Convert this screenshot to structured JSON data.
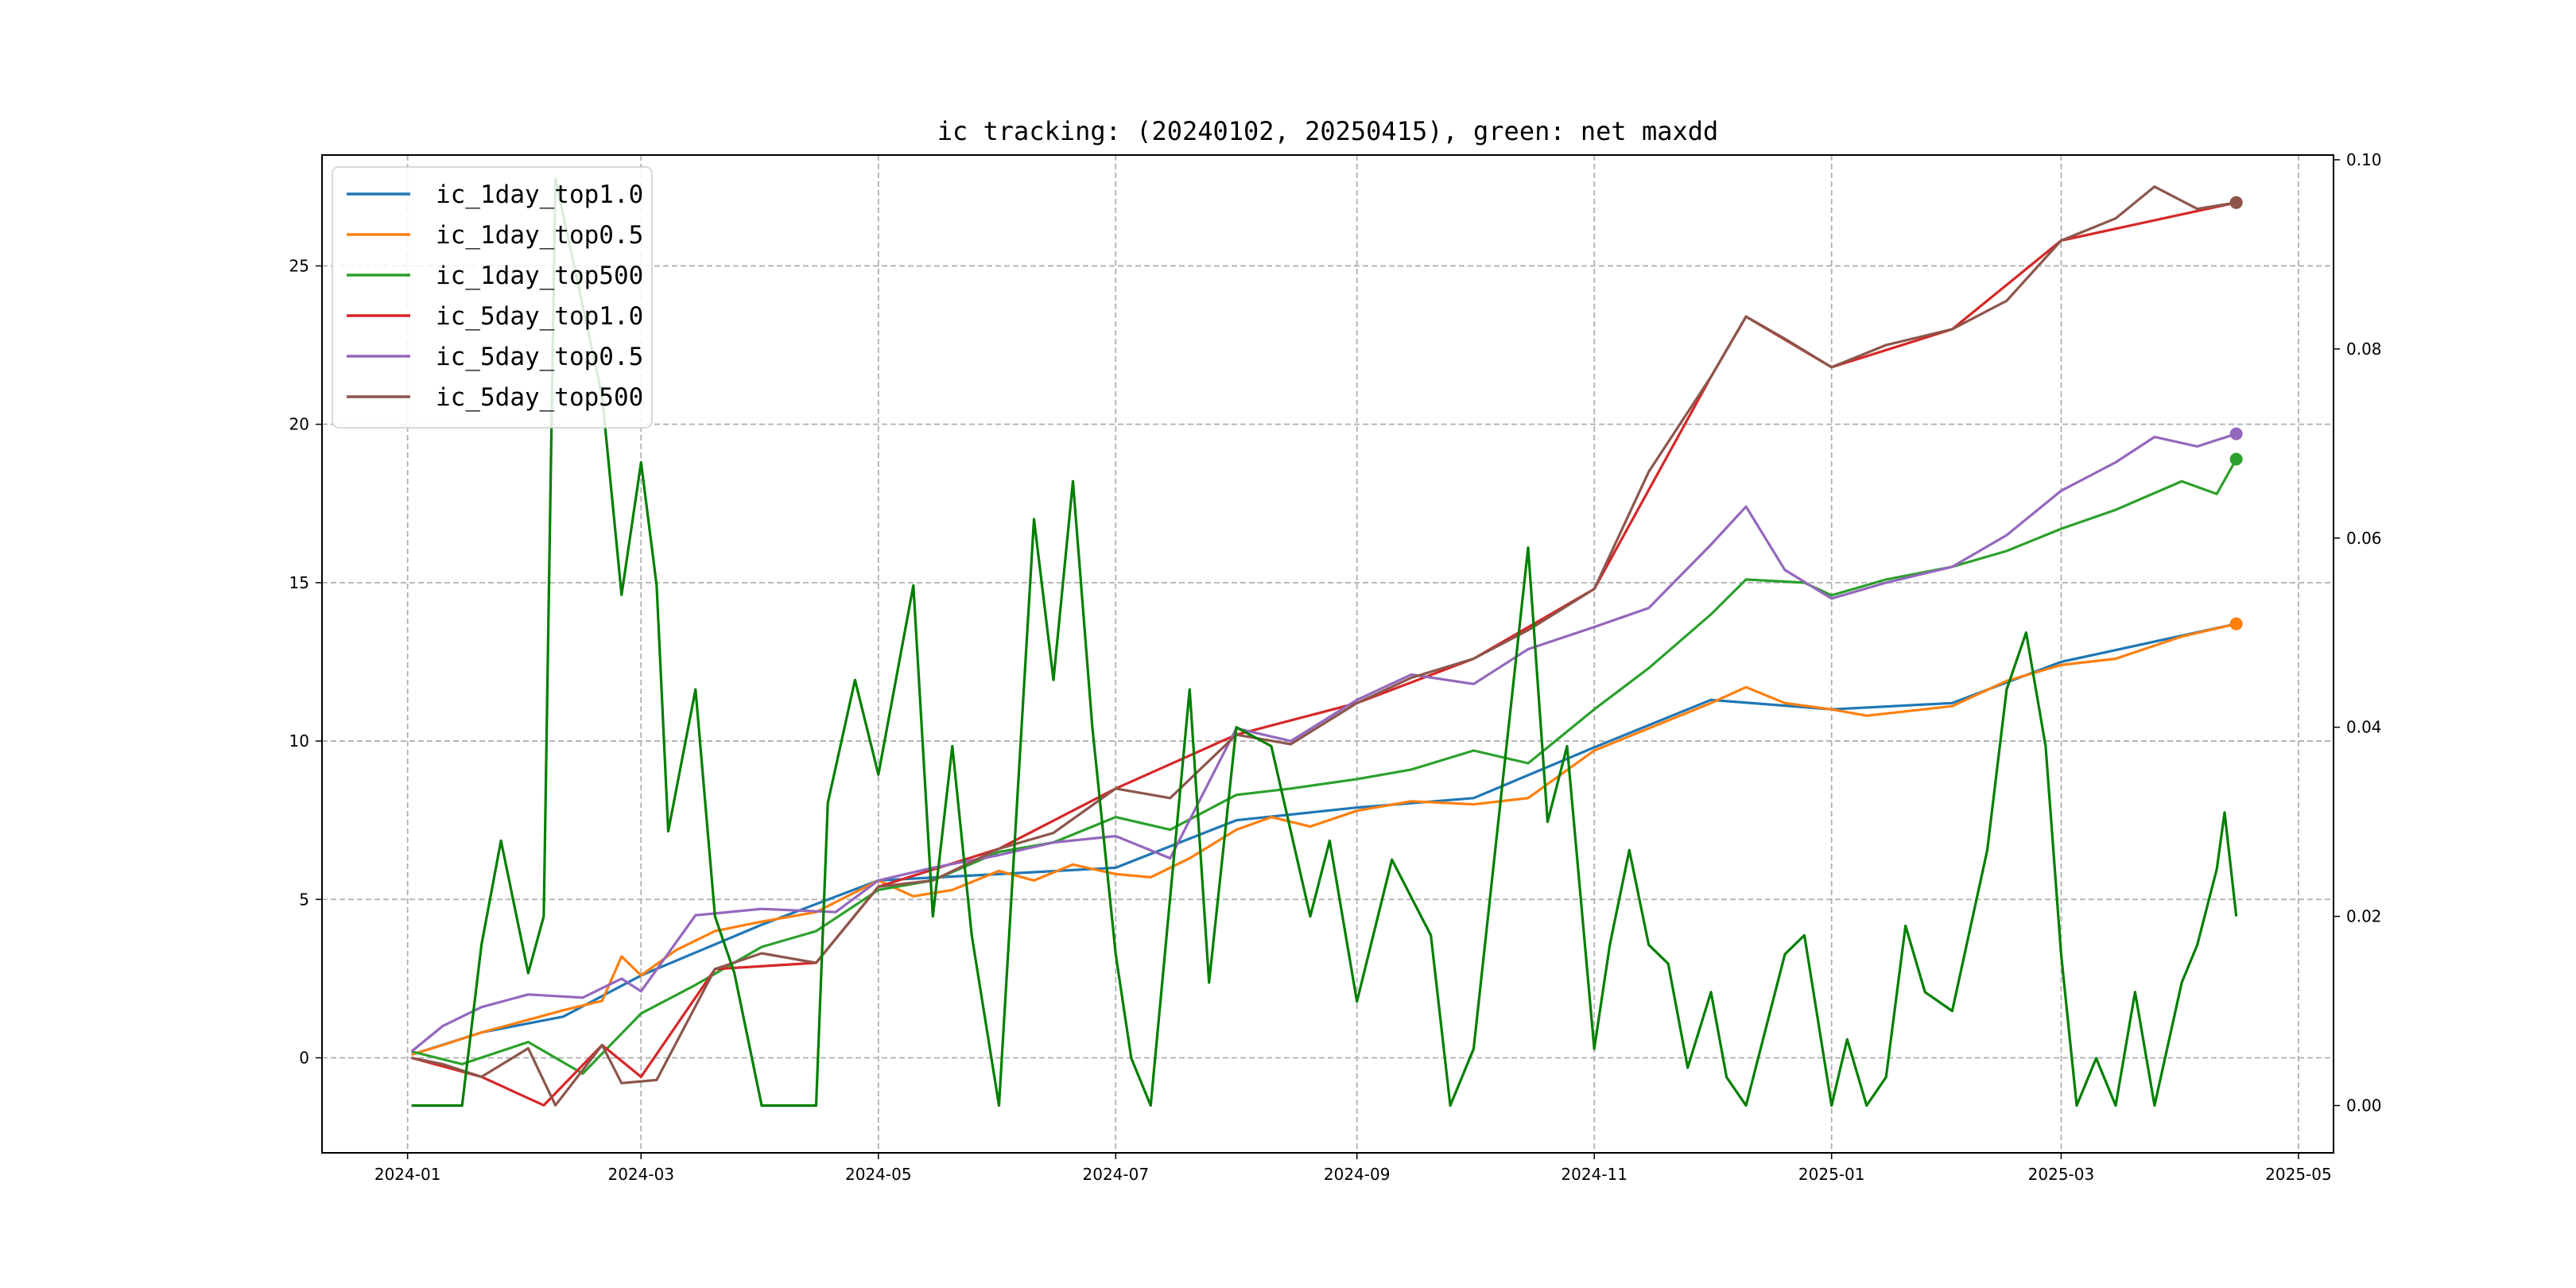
{
  "chart_data": {
    "type": "line",
    "title": "ic tracking: (20240102, 20250415), green: net maxdd",
    "xlabel": "",
    "ylabel": "",
    "x_tick_labels": [
      "2024-01",
      "2024-03",
      "2024-05",
      "2024-07",
      "2024-09",
      "2024-11",
      "2025-01",
      "2025-03",
      "2025-05"
    ],
    "x_range": [
      "2023-12-10",
      "2025-05-10"
    ],
    "y_left": {
      "ylim": [
        -3,
        28.5
      ],
      "ticks": [
        0,
        5,
        10,
        15,
        20,
        25
      ]
    },
    "y_right": {
      "ylim": [
        -0.005,
        0.1005
      ],
      "ticks": [
        "0.00",
        "0.02",
        "0.04",
        "0.06",
        "0.08",
        "0.10"
      ]
    },
    "grid": true,
    "legend_position": "top-left",
    "series": [
      {
        "name": "ic_1day_top1.0",
        "color": "#1f77b4",
        "axis": "left",
        "points": [
          [
            "2024-01-02",
            0.1
          ],
          [
            "2024-01-20",
            0.8
          ],
          [
            "2024-02-10",
            1.3
          ],
          [
            "2024-03-01",
            2.6
          ],
          [
            "2024-04-01",
            4.2
          ],
          [
            "2024-05-01",
            5.6
          ],
          [
            "2024-06-01",
            5.8
          ],
          [
            "2024-07-01",
            6.0
          ],
          [
            "2024-08-01",
            7.5
          ],
          [
            "2024-09-01",
            7.9
          ],
          [
            "2024-10-01",
            8.2
          ],
          [
            "2024-11-01",
            9.8
          ],
          [
            "2024-12-01",
            11.3
          ],
          [
            "2025-01-01",
            11.0
          ],
          [
            "2025-02-01",
            11.2
          ],
          [
            "2025-03-01",
            12.5
          ],
          [
            "2025-04-15",
            13.7
          ]
        ]
      },
      {
        "name": "ic_1day_top0.5",
        "color": "#ff7f0e",
        "axis": "left",
        "points": [
          [
            "2024-01-02",
            0.1
          ],
          [
            "2024-01-10",
            0.4
          ],
          [
            "2024-01-20",
            0.8
          ],
          [
            "2024-02-01",
            1.2
          ],
          [
            "2024-02-10",
            1.5
          ],
          [
            "2024-02-20",
            1.8
          ],
          [
            "2024-02-25",
            3.2
          ],
          [
            "2024-03-01",
            2.6
          ],
          [
            "2024-03-10",
            3.4
          ],
          [
            "2024-03-20",
            4.0
          ],
          [
            "2024-04-01",
            4.3
          ],
          [
            "2024-04-15",
            4.6
          ],
          [
            "2024-05-01",
            5.6
          ],
          [
            "2024-05-10",
            5.1
          ],
          [
            "2024-05-20",
            5.3
          ],
          [
            "2024-06-01",
            5.9
          ],
          [
            "2024-06-10",
            5.6
          ],
          [
            "2024-06-20",
            6.1
          ],
          [
            "2024-07-01",
            5.8
          ],
          [
            "2024-07-10",
            5.7
          ],
          [
            "2024-07-20",
            6.3
          ],
          [
            "2024-08-01",
            7.2
          ],
          [
            "2024-08-10",
            7.6
          ],
          [
            "2024-08-20",
            7.3
          ],
          [
            "2024-09-01",
            7.8
          ],
          [
            "2024-09-15",
            8.1
          ],
          [
            "2024-10-01",
            8.0
          ],
          [
            "2024-10-15",
            8.2
          ],
          [
            "2024-11-01",
            9.7
          ],
          [
            "2024-11-15",
            10.4
          ],
          [
            "2024-12-01",
            11.2
          ],
          [
            "2024-12-10",
            11.7
          ],
          [
            "2024-12-20",
            11.2
          ],
          [
            "2025-01-01",
            11.0
          ],
          [
            "2025-01-10",
            10.8
          ],
          [
            "2025-02-01",
            11.1
          ],
          [
            "2025-02-15",
            11.9
          ],
          [
            "2025-03-01",
            12.4
          ],
          [
            "2025-03-15",
            12.6
          ],
          [
            "2025-04-01",
            13.3
          ],
          [
            "2025-04-15",
            13.7
          ]
        ]
      },
      {
        "name": "ic_1day_top500",
        "color": "#2ca02c",
        "axis": "left",
        "points": [
          [
            "2024-01-02",
            0.2
          ],
          [
            "2024-01-15",
            -0.2
          ],
          [
            "2024-02-01",
            0.5
          ],
          [
            "2024-02-15",
            -0.5
          ],
          [
            "2024-03-01",
            1.4
          ],
          [
            "2024-03-15",
            2.3
          ],
          [
            "2024-04-01",
            3.5
          ],
          [
            "2024-04-15",
            4.0
          ],
          [
            "2024-05-01",
            5.3
          ],
          [
            "2024-05-15",
            5.6
          ],
          [
            "2024-06-01",
            6.5
          ],
          [
            "2024-06-15",
            6.8
          ],
          [
            "2024-07-01",
            7.6
          ],
          [
            "2024-07-15",
            7.2
          ],
          [
            "2024-08-01",
            8.3
          ],
          [
            "2024-08-15",
            8.5
          ],
          [
            "2024-09-01",
            8.8
          ],
          [
            "2024-09-15",
            9.1
          ],
          [
            "2024-10-01",
            9.7
          ],
          [
            "2024-10-15",
            9.3
          ],
          [
            "2024-11-01",
            11.0
          ],
          [
            "2024-11-15",
            12.3
          ],
          [
            "2024-12-01",
            14.0
          ],
          [
            "2024-12-10",
            15.1
          ],
          [
            "2024-12-25",
            15.0
          ],
          [
            "2025-01-01",
            14.6
          ],
          [
            "2025-01-15",
            15.1
          ],
          [
            "2025-02-01",
            15.5
          ],
          [
            "2025-02-15",
            16.0
          ],
          [
            "2025-03-01",
            16.7
          ],
          [
            "2025-03-15",
            17.3
          ],
          [
            "2025-04-01",
            18.2
          ],
          [
            "2025-04-10",
            17.8
          ],
          [
            "2025-04-15",
            18.9
          ]
        ]
      },
      {
        "name": "ic_5day_top1.0",
        "color": "#d62728",
        "axis": "left",
        "points": [
          [
            "2024-01-02",
            0.0
          ],
          [
            "2024-01-20",
            -0.6
          ],
          [
            "2024-02-05",
            -1.5
          ],
          [
            "2024-02-20",
            0.4
          ],
          [
            "2024-03-01",
            -0.6
          ],
          [
            "2024-03-20",
            2.8
          ],
          [
            "2024-04-15",
            3.0
          ],
          [
            "2024-05-01",
            5.4
          ],
          [
            "2024-06-01",
            6.6
          ],
          [
            "2024-07-01",
            8.5
          ],
          [
            "2024-08-01",
            10.2
          ],
          [
            "2024-09-01",
            11.2
          ],
          [
            "2024-10-01",
            12.6
          ],
          [
            "2024-11-01",
            14.8
          ],
          [
            "2024-12-01",
            21.5
          ],
          [
            "2024-12-10",
            23.4
          ],
          [
            "2025-01-01",
            21.8
          ],
          [
            "2025-02-01",
            23.0
          ],
          [
            "2025-03-01",
            25.8
          ],
          [
            "2025-04-15",
            27.0
          ]
        ]
      },
      {
        "name": "ic_5day_top0.5",
        "color": "#9467bd",
        "axis": "left",
        "points": [
          [
            "2024-01-02",
            0.2
          ],
          [
            "2024-01-10",
            1.0
          ],
          [
            "2024-01-20",
            1.6
          ],
          [
            "2024-02-01",
            2.0
          ],
          [
            "2024-02-15",
            1.9
          ],
          [
            "2024-02-25",
            2.5
          ],
          [
            "2024-03-01",
            2.1
          ],
          [
            "2024-03-15",
            4.5
          ],
          [
            "2024-04-01",
            4.7
          ],
          [
            "2024-04-20",
            4.6
          ],
          [
            "2024-05-01",
            5.6
          ],
          [
            "2024-05-15",
            6.0
          ],
          [
            "2024-06-01",
            6.4
          ],
          [
            "2024-06-15",
            6.8
          ],
          [
            "2024-07-01",
            7.0
          ],
          [
            "2024-07-15",
            6.3
          ],
          [
            "2024-08-01",
            10.4
          ],
          [
            "2024-08-15",
            10.0
          ],
          [
            "2024-09-01",
            11.3
          ],
          [
            "2024-09-15",
            12.1
          ],
          [
            "2024-10-01",
            11.8
          ],
          [
            "2024-10-15",
            12.9
          ],
          [
            "2024-11-01",
            13.6
          ],
          [
            "2024-11-15",
            14.2
          ],
          [
            "2024-12-01",
            16.2
          ],
          [
            "2024-12-10",
            17.4
          ],
          [
            "2024-12-20",
            15.4
          ],
          [
            "2025-01-01",
            14.5
          ],
          [
            "2025-01-15",
            15.0
          ],
          [
            "2025-02-01",
            15.5
          ],
          [
            "2025-02-15",
            16.5
          ],
          [
            "2025-03-01",
            17.9
          ],
          [
            "2025-03-15",
            18.8
          ],
          [
            "2025-03-25",
            19.6
          ],
          [
            "2025-04-05",
            19.3
          ],
          [
            "2025-04-15",
            19.7
          ]
        ]
      },
      {
        "name": "ic_5day_top500",
        "color": "#8c564b",
        "axis": "left",
        "points": [
          [
            "2024-01-02",
            0.0
          ],
          [
            "2024-01-10",
            -0.2
          ],
          [
            "2024-01-20",
            -0.6
          ],
          [
            "2024-02-01",
            0.3
          ],
          [
            "2024-02-08",
            -1.5
          ],
          [
            "2024-02-20",
            0.4
          ],
          [
            "2024-02-25",
            -0.8
          ],
          [
            "2024-03-05",
            -0.7
          ],
          [
            "2024-03-20",
            2.8
          ],
          [
            "2024-04-01",
            3.3
          ],
          [
            "2024-04-15",
            3.0
          ],
          [
            "2024-05-01",
            5.4
          ],
          [
            "2024-05-15",
            5.6
          ],
          [
            "2024-06-01",
            6.6
          ],
          [
            "2024-06-15",
            7.1
          ],
          [
            "2024-07-01",
            8.5
          ],
          [
            "2024-07-15",
            8.2
          ],
          [
            "2024-08-01",
            10.2
          ],
          [
            "2024-08-15",
            9.9
          ],
          [
            "2024-09-01",
            11.2
          ],
          [
            "2024-09-15",
            12.0
          ],
          [
            "2024-10-01",
            12.6
          ],
          [
            "2024-10-15",
            13.5
          ],
          [
            "2024-11-01",
            14.8
          ],
          [
            "2024-11-15",
            18.5
          ],
          [
            "2024-12-01",
            21.5
          ],
          [
            "2024-12-10",
            23.4
          ],
          [
            "2024-12-20",
            22.7
          ],
          [
            "2025-01-01",
            21.8
          ],
          [
            "2025-01-15",
            22.5
          ],
          [
            "2025-02-01",
            23.0
          ],
          [
            "2025-02-15",
            23.9
          ],
          [
            "2025-03-01",
            25.8
          ],
          [
            "2025-03-15",
            26.5
          ],
          [
            "2025-03-25",
            27.5
          ],
          [
            "2025-04-05",
            26.8
          ],
          [
            "2025-04-15",
            27.0
          ]
        ]
      },
      {
        "name": "net maxdd",
        "color": "#007f00",
        "axis": "right",
        "in_legend": false,
        "points": [
          [
            "2024-01-02",
            0.0
          ],
          [
            "2024-01-15",
            0.0
          ],
          [
            "2024-01-20",
            0.017
          ],
          [
            "2024-01-25",
            0.028
          ],
          [
            "2024-02-01",
            0.014
          ],
          [
            "2024-02-05",
            0.02
          ],
          [
            "2024-02-08",
            0.098
          ],
          [
            "2024-02-20",
            0.075
          ],
          [
            "2024-02-25",
            0.054
          ],
          [
            "2024-03-01",
            0.068
          ],
          [
            "2024-03-05",
            0.055
          ],
          [
            "2024-03-08",
            0.029
          ],
          [
            "2024-03-15",
            0.044
          ],
          [
            "2024-03-20",
            0.02
          ],
          [
            "2024-03-25",
            0.014
          ],
          [
            "2024-04-01",
            0.0
          ],
          [
            "2024-04-15",
            0.0
          ],
          [
            "2024-04-18",
            0.032
          ],
          [
            "2024-04-25",
            0.045
          ],
          [
            "2024-05-01",
            0.035
          ],
          [
            "2024-05-10",
            0.055
          ],
          [
            "2024-05-15",
            0.02
          ],
          [
            "2024-05-20",
            0.038
          ],
          [
            "2024-05-25",
            0.018
          ],
          [
            "2024-06-01",
            0.0
          ],
          [
            "2024-06-10",
            0.062
          ],
          [
            "2024-06-15",
            0.045
          ],
          [
            "2024-06-20",
            0.066
          ],
          [
            "2024-06-25",
            0.04
          ],
          [
            "2024-07-01",
            0.016
          ],
          [
            "2024-07-05",
            0.005
          ],
          [
            "2024-07-10",
            0.0
          ],
          [
            "2024-07-20",
            0.044
          ],
          [
            "2024-07-25",
            0.013
          ],
          [
            "2024-08-01",
            0.04
          ],
          [
            "2024-08-10",
            0.038
          ],
          [
            "2024-08-20",
            0.02
          ],
          [
            "2024-08-25",
            0.028
          ],
          [
            "2024-09-01",
            0.011
          ],
          [
            "2024-09-10",
            0.026
          ],
          [
            "2024-09-20",
            0.018
          ],
          [
            "2024-09-25",
            0.0
          ],
          [
            "2024-10-01",
            0.006
          ],
          [
            "2024-10-15",
            0.059
          ],
          [
            "2024-10-20",
            0.03
          ],
          [
            "2024-10-25",
            0.038
          ],
          [
            "2024-11-01",
            0.006
          ],
          [
            "2024-11-05",
            0.017
          ],
          [
            "2024-11-10",
            0.027
          ],
          [
            "2024-11-15",
            0.017
          ],
          [
            "2024-11-20",
            0.015
          ],
          [
            "2024-11-25",
            0.004
          ],
          [
            "2024-12-01",
            0.012
          ],
          [
            "2024-12-05",
            0.003
          ],
          [
            "2024-12-10",
            0.0
          ],
          [
            "2024-12-15",
            0.008
          ],
          [
            "2024-12-20",
            0.016
          ],
          [
            "2024-12-25",
            0.018
          ],
          [
            "2025-01-01",
            0.0
          ],
          [
            "2025-01-05",
            0.007
          ],
          [
            "2025-01-10",
            0.0
          ],
          [
            "2025-01-15",
            0.003
          ],
          [
            "2025-01-20",
            0.019
          ],
          [
            "2025-01-25",
            0.012
          ],
          [
            "2025-02-01",
            0.01
          ],
          [
            "2025-02-10",
            0.027
          ],
          [
            "2025-02-15",
            0.044
          ],
          [
            "2025-02-20",
            0.05
          ],
          [
            "2025-02-25",
            0.038
          ],
          [
            "2025-03-01",
            0.016
          ],
          [
            "2025-03-05",
            0.0
          ],
          [
            "2025-03-10",
            0.005
          ],
          [
            "2025-03-15",
            0.0
          ],
          [
            "2025-03-20",
            0.012
          ],
          [
            "2025-03-25",
            0.0
          ],
          [
            "2025-04-01",
            0.013
          ],
          [
            "2025-04-05",
            0.017
          ],
          [
            "2025-04-10",
            0.025
          ],
          [
            "2025-04-12",
            0.031
          ],
          [
            "2025-04-15",
            0.02
          ]
        ]
      }
    ]
  }
}
